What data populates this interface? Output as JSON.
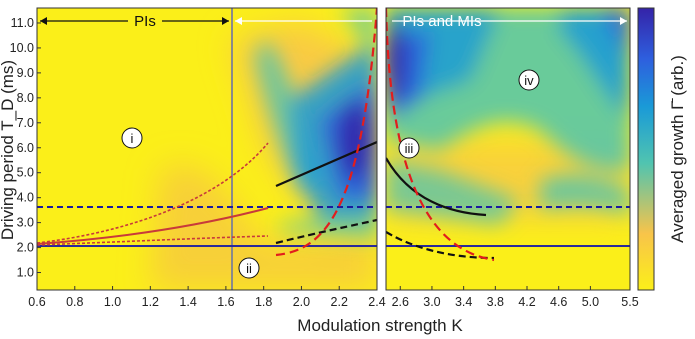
{
  "chart_data": {
    "type": "heatmap",
    "xlabel": "Modulation strength K",
    "ylabel": "Driving period T_D (ms)",
    "colorbar_label": "Averaged growth Γ̄ (arb.)",
    "colormap": [
      "#fbef19",
      "#f8c44a",
      "#50c4b0",
      "#1a9ad7",
      "#2e5fde",
      "#3423a8"
    ],
    "left_panel": {
      "x_ticks": [
        "0.6",
        "0.8",
        "1.0",
        "1.2",
        "1.4",
        "1.6",
        "1.8",
        "2.0",
        "2.2",
        "2.4"
      ],
      "xlim": [
        0.6,
        2.4
      ]
    },
    "right_panel": {
      "x_ticks": [
        "2.6",
        "3.0",
        "3.4",
        "3.8",
        "4.2",
        "4.6",
        "5.0",
        "5.5"
      ],
      "xlim": [
        2.42,
        5.5
      ]
    },
    "y_ticks": [
      "1.0",
      "2.0",
      "3.0",
      "4.0",
      "5.0",
      "6.0",
      "7.0",
      "8.0",
      "9.0",
      "10.0",
      "11.0"
    ],
    "ylim": [
      0.3,
      11.6
    ],
    "regions": [
      {
        "label": "PIs",
        "x_range": [
          0.6,
          1.58
        ]
      },
      {
        "label": "PIs and MIs",
        "x_range": [
          1.58,
          5.5
        ]
      }
    ],
    "markers": [
      {
        "label": "i",
        "x": 1.0,
        "y": 6.0
      },
      {
        "label": "ii",
        "x": 1.7,
        "y": 1.3
      },
      {
        "label": "iii",
        "x": 2.8,
        "y": 6.0
      },
      {
        "label": "iv",
        "x": 4.25,
        "y": 9.0
      }
    ],
    "reference_lines": [
      {
        "kind": "vertical",
        "x": 1.58,
        "color": "#888888"
      },
      {
        "kind": "horizontal-dashed",
        "y": 3.7,
        "color": "#1a1aa0"
      },
      {
        "kind": "horizontal-solid",
        "y": 2.1,
        "color": "#2a2a9a"
      }
    ]
  }
}
